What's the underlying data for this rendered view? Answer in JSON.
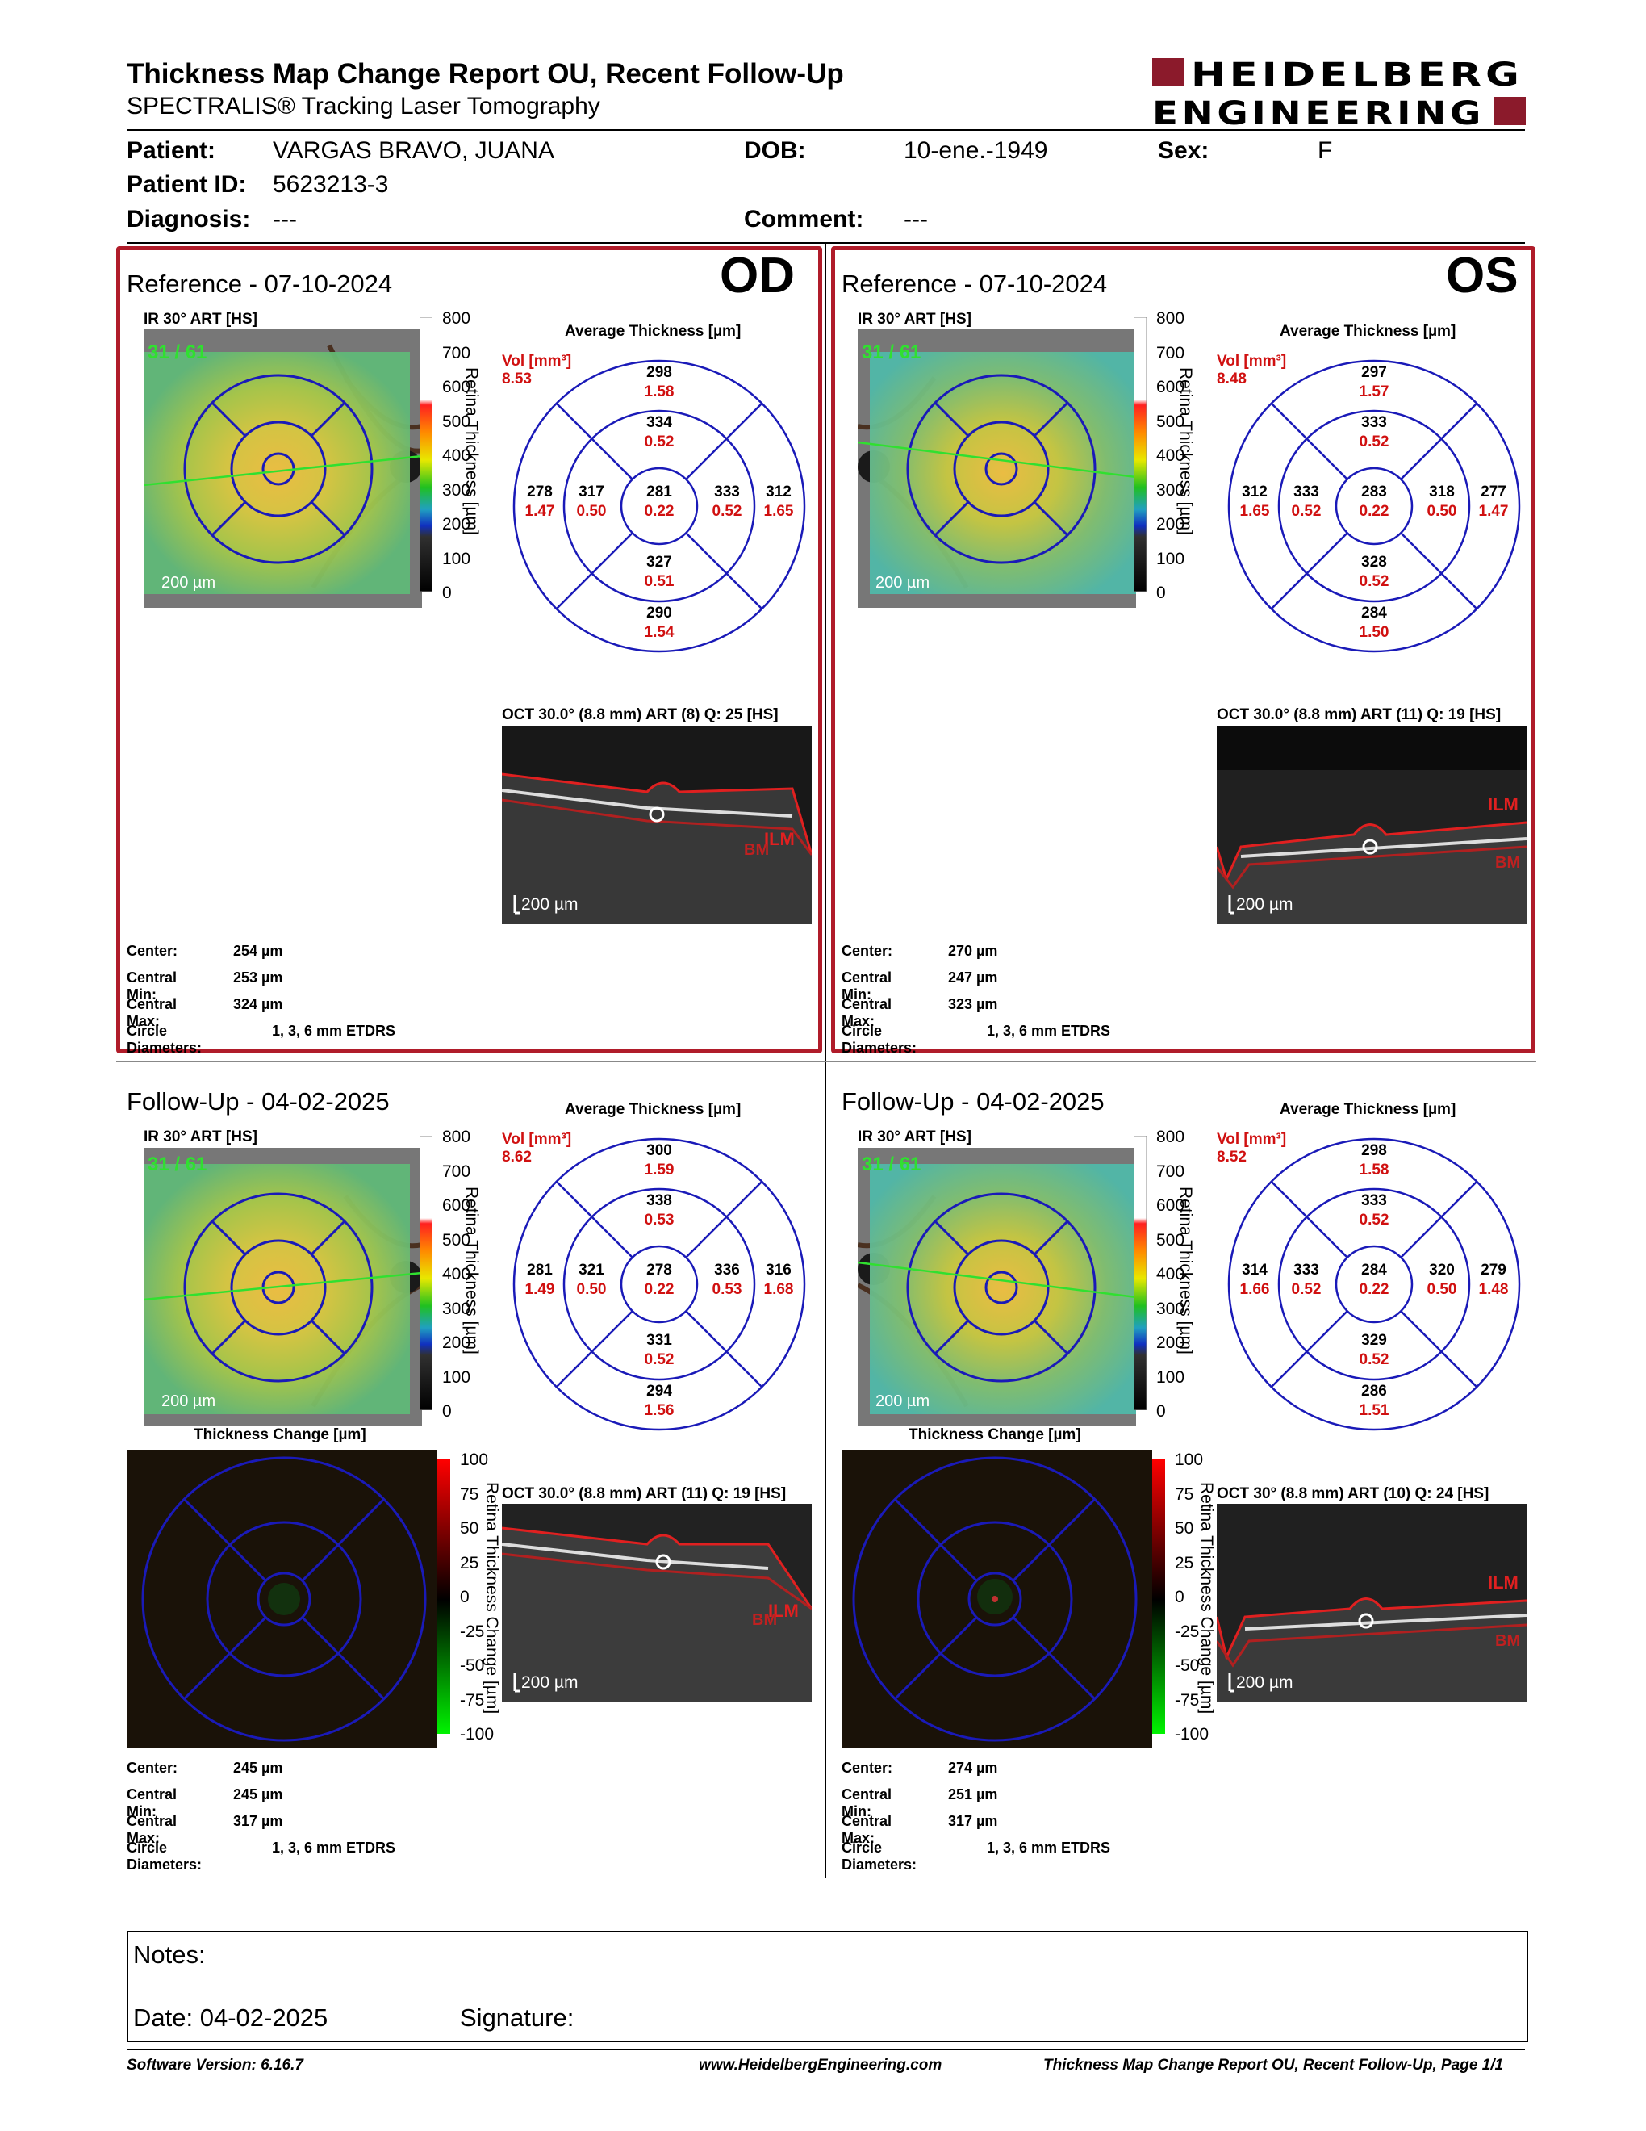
{
  "header": {
    "title": "Thickness Map Change Report OU, Recent Follow-Up",
    "subtitle": "SPECTRALIS® Tracking Laser Tomography",
    "logo_line1": "HEIDELBERG",
    "logo_line2": "ENGINEERING"
  },
  "patient": {
    "patient_label": "Patient:",
    "patient_value": "VARGAS BRAVO, JUANA",
    "dob_label": "DOB:",
    "dob_value": "10-ene.-1949",
    "sex_label": "Sex:",
    "sex_value": "F",
    "id_label": "Patient ID:",
    "id_value": "5623213-3",
    "diagnosis_label": "Diagnosis:",
    "diagnosis_value": "---",
    "comment_label": "Comment:",
    "comment_value": "---"
  },
  "common": {
    "ir_label": "IR 30° ART [HS]",
    "avg_thickness_label": "Average Thickness [µm]",
    "vol_label": "Vol [mm³]",
    "scale_200": "200 µm",
    "retina_axis_title": "Retina Thickness [µm]",
    "change_axis_title": "Retina Thickness Change [µm]",
    "thickness_change_label": "Thickness Change [µm]",
    "ticks_thickness": [
      "800",
      "700",
      "600",
      "500",
      "400",
      "300",
      "200",
      "100",
      "0"
    ],
    "ticks_change": [
      "100",
      "75",
      "50",
      "25",
      "0",
      "-25",
      "-50",
      "-75",
      "-100"
    ],
    "ilm": "ILM",
    "bm": "BM",
    "stat_labels": {
      "center": "Center:",
      "central_min": "Central Min:",
      "central_max": "Central Max:",
      "circle": "Circle Diameters:"
    },
    "circle_value": "1, 3, 6 mm ETDRS",
    "fixation_label": "31 / 61"
  },
  "panels": {
    "od_ref": {
      "eye": "OD",
      "title": "Reference - 07-10-2024",
      "vol": "8.53",
      "grid": {
        "outer_sup": [
          "298",
          "1.58"
        ],
        "inner_sup": [
          "334",
          "0.52"
        ],
        "outer_left": [
          "278",
          "1.47"
        ],
        "inner_left": [
          "317",
          "0.50"
        ],
        "center": [
          "281",
          "0.22"
        ],
        "inner_right": [
          "333",
          "0.52"
        ],
        "outer_right": [
          "312",
          "1.65"
        ],
        "inner_inf": [
          "327",
          "0.51"
        ],
        "outer_inf": [
          "290",
          "1.54"
        ]
      },
      "oct_label": "OCT 30.0° (8.8 mm) ART (8) Q: 25 [HS]",
      "stats": {
        "center": "254 µm",
        "central_min": "253 µm",
        "central_max": "324 µm"
      }
    },
    "os_ref": {
      "eye": "OS",
      "title": "Reference - 07-10-2024",
      "vol": "8.48",
      "grid": {
        "outer_sup": [
          "297",
          "1.57"
        ],
        "inner_sup": [
          "333",
          "0.52"
        ],
        "outer_left": [
          "312",
          "1.65"
        ],
        "inner_left": [
          "333",
          "0.52"
        ],
        "center": [
          "283",
          "0.22"
        ],
        "inner_right": [
          "318",
          "0.50"
        ],
        "outer_right": [
          "277",
          "1.47"
        ],
        "inner_inf": [
          "328",
          "0.52"
        ],
        "outer_inf": [
          "284",
          "1.50"
        ]
      },
      "oct_label": "OCT 30.0° (8.8 mm) ART (11) Q: 19 [HS]",
      "stats": {
        "center": "270 µm",
        "central_min": "247 µm",
        "central_max": "323 µm"
      }
    },
    "od_fu": {
      "title": "Follow-Up - 04-02-2025",
      "vol": "8.62",
      "grid": {
        "outer_sup": [
          "300",
          "1.59"
        ],
        "inner_sup": [
          "338",
          "0.53"
        ],
        "outer_left": [
          "281",
          "1.49"
        ],
        "inner_left": [
          "321",
          "0.50"
        ],
        "center": [
          "278",
          "0.22"
        ],
        "inner_right": [
          "336",
          "0.53"
        ],
        "outer_right": [
          "316",
          "1.68"
        ],
        "inner_inf": [
          "331",
          "0.52"
        ],
        "outer_inf": [
          "294",
          "1.56"
        ]
      },
      "oct_label": "OCT 30.0° (8.8 mm) ART (11) Q: 19 [HS]",
      "stats": {
        "center": "245 µm",
        "central_min": "245 µm",
        "central_max": "317 µm"
      }
    },
    "os_fu": {
      "title": "Follow-Up - 04-02-2025",
      "vol": "8.52",
      "grid": {
        "outer_sup": [
          "298",
          "1.58"
        ],
        "inner_sup": [
          "333",
          "0.52"
        ],
        "outer_left": [
          "314",
          "1.66"
        ],
        "inner_left": [
          "333",
          "0.52"
        ],
        "center": [
          "284",
          "0.22"
        ],
        "inner_right": [
          "320",
          "0.50"
        ],
        "outer_right": [
          "279",
          "1.48"
        ],
        "inner_inf": [
          "329",
          "0.52"
        ],
        "outer_inf": [
          "286",
          "1.51"
        ]
      },
      "oct_label": "OCT 30° (8.8 mm) ART (10) Q: 24 [HS]",
      "stats": {
        "center": "274 µm",
        "central_min": "251 µm",
        "central_max": "317 µm"
      }
    }
  },
  "notes": {
    "notes_label": "Notes:",
    "date_label": "Date: 04-02-2025",
    "signature_label": "Signature:"
  },
  "footer": {
    "software": "Software Version: 6.16.7",
    "website": "www.HeidelbergEngineering.com",
    "report": "Thickness Map Change Report OU, Recent Follow-Up, Page 1/1"
  },
  "colors": {
    "brand": "#8b1a2b",
    "frame": "#b01c2a",
    "grid_line": "#1a1ab8",
    "value_red": "#d01010"
  }
}
